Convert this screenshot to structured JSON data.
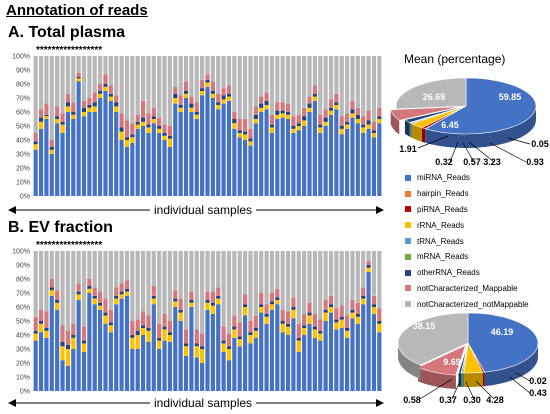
{
  "header": {
    "title": "Annotation of reads",
    "panel_a_title": "A. Total plasma",
    "panel_b_title": "B. EV fraction",
    "stars_a": "*****************",
    "stars_b": "*****************",
    "xlabel": "individual samples",
    "pie_title": "Mean (percentage)"
  },
  "legend": [
    {
      "label": "miRNA_Reads",
      "color": "#4472c4"
    },
    {
      "label": "hairpin_Reads",
      "color": "#ed7d31"
    },
    {
      "label": "piRNA_Reads",
      "color": "#c00000"
    },
    {
      "label": "rRNA_Reads",
      "color": "#ffc000"
    },
    {
      "label": "tRNA_Reads",
      "color": "#5b9bd5"
    },
    {
      "label": "mRNA_Reads",
      "color": "#70ad47"
    },
    {
      "label": "otherRNA_Reads",
      "color": "#264478"
    },
    {
      "label": "notCharacterized_Mappable",
      "color": "#d6777b"
    },
    {
      "label": "notCharacterized_notMappable",
      "color": "#b8b8b8"
    }
  ],
  "chart_data": [
    {
      "type": "bar",
      "stacked": true,
      "title": "A. Total plasma",
      "xlabel": "individual samples",
      "ylim": [
        0,
        100
      ],
      "yticks": [
        "0%",
        "10%",
        "20%",
        "30%",
        "40%",
        "50%",
        "60%",
        "70%",
        "80%",
        "90%",
        "100%"
      ],
      "series_order": [
        "miRNA_Reads",
        "rRNA_Reads",
        "otherRNA_Reads",
        "notCharacterized_Mappable",
        "notCharacterized_notMappable"
      ],
      "mirna": [
        33,
        48,
        55,
        30,
        52,
        45,
        60,
        55,
        82,
        57,
        60,
        60,
        70,
        75,
        68,
        60,
        40,
        35,
        38,
        48,
        50,
        45,
        52,
        45,
        40,
        35,
        66,
        60,
        70,
        60,
        55,
        72,
        78,
        70,
        62,
        66,
        68,
        48,
        42,
        40,
        36,
        52,
        60,
        62,
        45,
        55,
        56,
        55,
        45,
        47,
        50,
        60,
        68,
        45,
        50,
        58,
        62,
        44,
        48,
        56,
        52,
        45,
        48,
        42,
        52
      ],
      "rrna": [
        4,
        5,
        2,
        3,
        3,
        6,
        4,
        3,
        2,
        3,
        3,
        4,
        3,
        3,
        3,
        4,
        6,
        5,
        4,
        3,
        3,
        4,
        3,
        3,
        3,
        6,
        4,
        3,
        3,
        3,
        3,
        3,
        3,
        3,
        3,
        3,
        3,
        4,
        3,
        4,
        3,
        3,
        3,
        3,
        4,
        3,
        3,
        3,
        3,
        3,
        4,
        3,
        3,
        4,
        3,
        3,
        3,
        4,
        3,
        3,
        3,
        4,
        3,
        3,
        3
      ],
      "other": [
        2,
        3,
        1,
        2,
        2,
        2,
        3,
        2,
        1,
        3,
        2,
        3,
        2,
        2,
        2,
        3,
        3,
        2,
        2,
        2,
        3,
        2,
        2,
        2,
        2,
        2,
        3,
        2,
        2,
        3,
        2,
        2,
        2,
        2,
        2,
        3,
        2,
        3,
        2,
        2,
        2,
        3,
        3,
        3,
        2,
        3,
        2,
        2,
        2,
        2,
        3,
        3,
        2,
        2,
        3,
        2,
        2,
        2,
        2,
        3,
        3,
        2,
        3,
        2,
        2
      ],
      "mappable": [
        6,
        6,
        8,
        5,
        7,
        6,
        6,
        7,
        3,
        5,
        5,
        7,
        5,
        7,
        6,
        5,
        10,
        12,
        8,
        5,
        12,
        8,
        6,
        6,
        6,
        7,
        5,
        7,
        7,
        5,
        7,
        6,
        4,
        7,
        6,
        5,
        6,
        5,
        8,
        9,
        7,
        6,
        5,
        6,
        7,
        6,
        6,
        6,
        7,
        6,
        6,
        5,
        6,
        7,
        6,
        6,
        6,
        7,
        6,
        6,
        5,
        6,
        7,
        6,
        6
      ]
    },
    {
      "type": "bar",
      "stacked": true,
      "title": "B. EV fraction",
      "xlabel": "individual samples",
      "ylim": [
        0,
        100
      ],
      "yticks": [
        "0%",
        "10%",
        "20%",
        "30%",
        "40%",
        "50%",
        "60%",
        "70%",
        "80%",
        "90%",
        "100%"
      ],
      "series_order": [
        "miRNA_Reads",
        "rRNA_Reads",
        "otherRNA_Reads",
        "notCharacterized_Mappable",
        "notCharacterized_notMappable"
      ],
      "mirna": [
        36,
        42,
        38,
        68,
        58,
        22,
        18,
        30,
        65,
        28,
        70,
        62,
        58,
        48,
        42,
        62,
        66,
        68,
        30,
        30,
        40,
        35,
        62,
        30,
        36,
        35,
        60,
        50,
        25,
        60,
        24,
        20,
        58,
        55,
        62,
        28,
        22,
        38,
        32,
        54,
        34,
        38,
        56,
        48,
        58,
        62,
        42,
        40,
        52,
        28,
        40,
        48,
        38,
        36,
        50,
        56,
        44,
        45,
        38,
        52,
        48,
        62,
        85,
        55,
        42
      ],
      "rrna": [
        5,
        6,
        5,
        4,
        5,
        10,
        12,
        8,
        4,
        6,
        3,
        4,
        3,
        6,
        5,
        4,
        3,
        3,
        8,
        10,
        5,
        8,
        4,
        6,
        8,
        5,
        4,
        6,
        7,
        3,
        8,
        10,
        5,
        6,
        4,
        6,
        8,
        6,
        5,
        6,
        6,
        5,
        4,
        5,
        4,
        3,
        6,
        6,
        6,
        8,
        5,
        6,
        6,
        5,
        6,
        4,
        5,
        6,
        5,
        4,
        5,
        4,
        3,
        5,
        6
      ],
      "other": [
        2,
        2,
        2,
        2,
        2,
        3,
        3,
        2,
        2,
        2,
        2,
        2,
        2,
        2,
        2,
        2,
        2,
        2,
        2,
        3,
        2,
        2,
        2,
        2,
        2,
        2,
        2,
        2,
        2,
        2,
        2,
        2,
        2,
        2,
        2,
        2,
        2,
        2,
        2,
        2,
        2,
        2,
        2,
        2,
        2,
        2,
        2,
        2,
        2,
        2,
        2,
        2,
        2,
        2,
        2,
        2,
        2,
        2,
        2,
        2,
        2,
        2,
        2,
        2,
        2
      ],
      "mappable": [
        10,
        8,
        12,
        6,
        7,
        12,
        10,
        8,
        6,
        10,
        5,
        6,
        8,
        10,
        9,
        6,
        6,
        6,
        10,
        8,
        10,
        9,
        7,
        10,
        9,
        8,
        6,
        8,
        10,
        6,
        10,
        9,
        6,
        8,
        6,
        10,
        9,
        8,
        10,
        7,
        8,
        9,
        8,
        7,
        6,
        6,
        8,
        9,
        7,
        10,
        8,
        7,
        9,
        8,
        7,
        6,
        8,
        8,
        9,
        7,
        8,
        6,
        3,
        6,
        9
      ]
    },
    {
      "type": "pie",
      "title": "Mean (percentage)",
      "panel": "A",
      "labels": [
        "miRNA_Reads",
        "hairpin_Reads",
        "piRNA_Reads",
        "rRNA_Reads",
        "tRNA_Reads",
        "mRNA_Reads",
        "otherRNA_Reads",
        "notCharacterized_Mappable",
        "notCharacterized_notMappable"
      ],
      "values": [
        59.85,
        0.05,
        0.93,
        3.23,
        0.57,
        0.32,
        1.91,
        6.45,
        26.69
      ],
      "value_labels": [
        "59.85",
        "0.05",
        "0.93",
        "3.23",
        "0.57",
        "0.32",
        "1.91",
        "6.45",
        "26.69"
      ]
    },
    {
      "type": "pie",
      "title": "Mean (percentage)",
      "panel": "B",
      "labels": [
        "miRNA_Reads",
        "hairpin_Reads",
        "piRNA_Reads",
        "rRNA_Reads",
        "tRNA_Reads",
        "mRNA_Reads",
        "otherRNA_Reads",
        "notCharacterized_Mappable",
        "notCharacterized_notMappable"
      ],
      "values": [
        46.19,
        0.02,
        0.43,
        4.28,
        0.3,
        0.37,
        0.58,
        9.69,
        38.15
      ],
      "value_labels": [
        "46.19",
        "0.02",
        "0.43",
        "4.28",
        "0.30",
        "0.37",
        "0.58",
        "9.69",
        "38.15"
      ]
    }
  ]
}
